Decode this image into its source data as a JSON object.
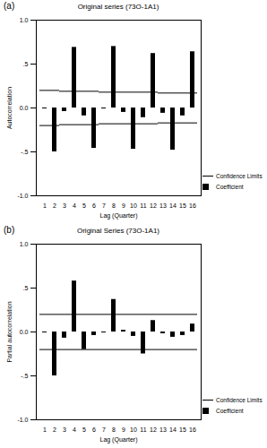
{
  "chart_data": [
    {
      "type": "bar",
      "annotation": "(a)",
      "title": "Original series (73O-1A1)",
      "x_label": "Lag (Quarter)",
      "y_label": "Autocorrelation",
      "categories": [
        1,
        2,
        3,
        4,
        5,
        6,
        7,
        8,
        9,
        10,
        11,
        12,
        13,
        14,
        15,
        16
      ],
      "series": [
        {
          "name": "Confidence Limits",
          "type": "line",
          "color": "#000000",
          "values": [
            0.2,
            0.2,
            0.19,
            0.19,
            0.19,
            0.19,
            0.18,
            0.18,
            0.18,
            0.18,
            0.18,
            0.18,
            0.17,
            0.17,
            0.17,
            0.17
          ],
          "lower": [
            -0.2,
            -0.2,
            -0.19,
            -0.19,
            -0.19,
            -0.19,
            -0.18,
            -0.18,
            -0.18,
            -0.18,
            -0.18,
            -0.18,
            -0.17,
            -0.17,
            -0.17,
            -0.17
          ]
        },
        {
          "name": "Coefficient",
          "type": "bar",
          "color": "#000000",
          "values": [
            -0.01,
            -0.5,
            -0.04,
            0.69,
            -0.09,
            -0.46,
            -0.01,
            0.7,
            -0.05,
            -0.47,
            -0.11,
            0.62,
            -0.06,
            -0.48,
            -0.09,
            0.64
          ]
        }
      ],
      "ylim": [
        -1,
        1
      ],
      "yticks": [
        {
          "value": -1,
          "label": "-1.0"
        },
        {
          "value": -0.5,
          "label": "-.5"
        },
        {
          "value": 0,
          "label": "0.0"
        },
        {
          "value": 0.5,
          "label": ".5"
        },
        {
          "value": 1,
          "label": "1.0"
        }
      ],
      "legend": "bottom-right"
    },
    {
      "type": "bar",
      "annotation": "(b)",
      "title": "Original Series (73O-1A1)",
      "x_label": "Lag (Quarter)",
      "y_label": "Partial autocorrelation",
      "categories": [
        1,
        2,
        3,
        4,
        5,
        6,
        7,
        8,
        9,
        10,
        11,
        12,
        13,
        14,
        15,
        16
      ],
      "series": [
        {
          "name": "Confidence Limits",
          "type": "line",
          "color": "#000000",
          "values": [
            0.2,
            0.2,
            0.2,
            0.2,
            0.2,
            0.2,
            0.2,
            0.2,
            0.2,
            0.2,
            0.2,
            0.2,
            0.2,
            0.2,
            0.2,
            0.2
          ],
          "lower": [
            -0.2,
            -0.2,
            -0.2,
            -0.2,
            -0.2,
            -0.2,
            -0.2,
            -0.2,
            -0.2,
            -0.2,
            -0.2,
            -0.2,
            -0.2,
            -0.2,
            -0.2,
            -0.2
          ]
        },
        {
          "name": "Coefficient",
          "type": "bar",
          "color": "#000000",
          "values": [
            -0.01,
            -0.5,
            -0.07,
            0.58,
            -0.2,
            -0.04,
            -0.01,
            0.37,
            0.02,
            -0.05,
            -0.25,
            0.13,
            -0.02,
            -0.06,
            -0.04,
            0.09
          ]
        }
      ],
      "ylim": [
        -1,
        1
      ],
      "yticks": [
        {
          "value": -1,
          "label": "-1.0"
        },
        {
          "value": -0.5,
          "label": "-.5"
        },
        {
          "value": 0,
          "label": "0.0"
        },
        {
          "value": 0.5,
          "label": ".5"
        },
        {
          "value": 1,
          "label": "1.0"
        }
      ],
      "legend": "bottom-right"
    }
  ]
}
